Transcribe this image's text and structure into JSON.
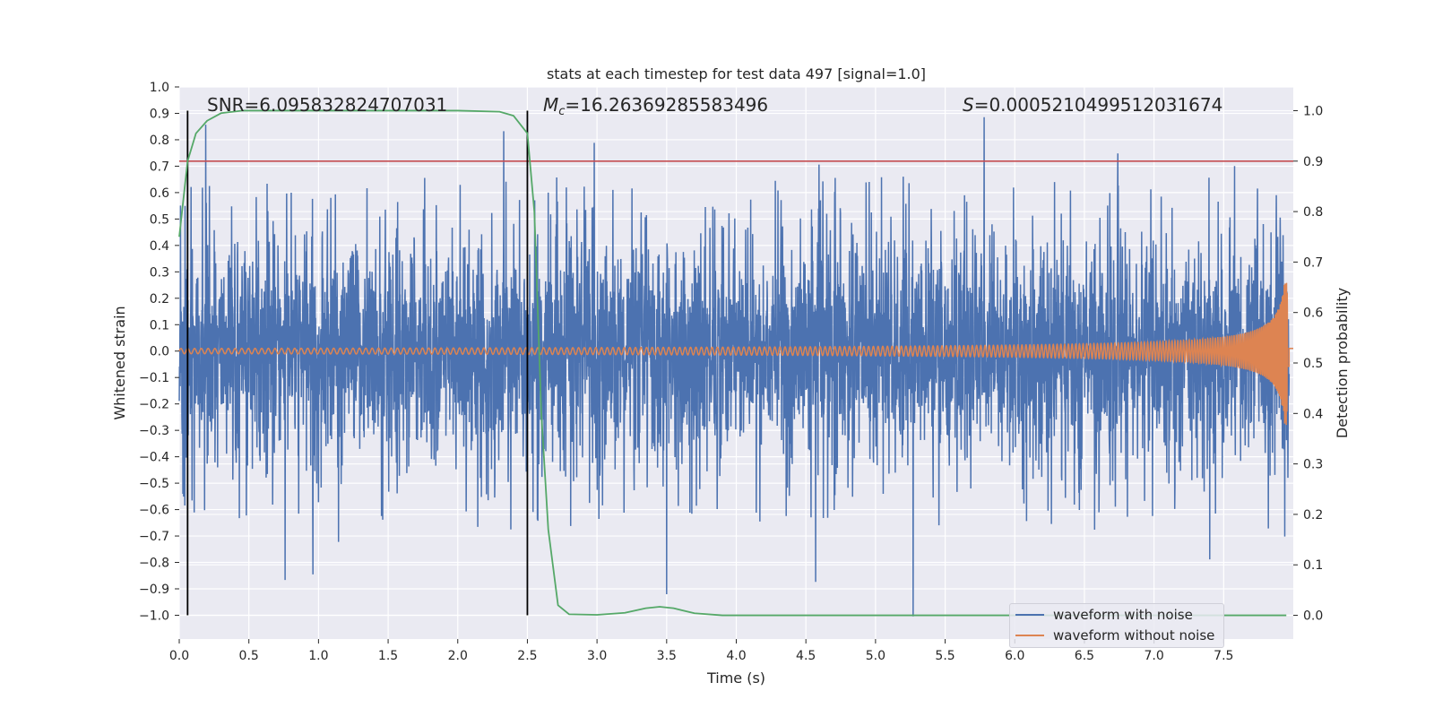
{
  "chart_data": {
    "type": "line",
    "title": "stats at each timestep for test data 497 [signal=1.0]",
    "xlabel": "Time (s)",
    "ylabel": "Whitened strain",
    "y2label": "Detection probability",
    "xlim": [
      0.0,
      8.0
    ],
    "ylim": [
      -1.09,
      1.0
    ],
    "y2lim": [
      -0.047,
      1.047
    ],
    "xticks": [
      "0.0",
      "0.5",
      "1.0",
      "1.5",
      "2.0",
      "2.5",
      "3.0",
      "3.5",
      "4.0",
      "4.5",
      "5.0",
      "5.5",
      "6.0",
      "6.5",
      "7.0",
      "7.5"
    ],
    "yticks": [
      "1.0",
      "0.9",
      "0.8",
      "0.7",
      "0.6",
      "0.5",
      "0.4",
      "0.3",
      "0.2",
      "0.1",
      "0.0",
      "−0.1",
      "−0.2",
      "−0.3",
      "−0.4",
      "−0.5",
      "−0.6",
      "−0.7",
      "−0.8",
      "−0.9",
      "−1.0"
    ],
    "y2ticks": [
      "1.0",
      "0.9",
      "0.8",
      "0.7",
      "0.6",
      "0.5",
      "0.4",
      "0.3",
      "0.2",
      "0.1",
      "0.0"
    ],
    "grid": true,
    "background": "#EAEAF2",
    "annotations": {
      "snr": "SNR=6.095832824707031",
      "mc_symbol": "M",
      "mc_sub": "c",
      "mc_value": "=16.26369285583496",
      "s_symbol": "S",
      "s_value": "=0.0005210499512031674"
    },
    "vlines_x": [
      0.06,
      2.5
    ],
    "threshold_y2": 0.9,
    "noise_envelope": {
      "core_amplitude": 0.33,
      "notable_peaks": [
        {
          "x": 0.19,
          "y": 0.85
        },
        {
          "x": 2.33,
          "y": 0.84
        },
        {
          "x": 2.98,
          "y": 0.79
        },
        {
          "x": 5.27,
          "y": 0.73
        },
        {
          "x": 5.78,
          "y": 0.9
        },
        {
          "x": 6.74,
          "y": 0.76
        },
        {
          "x": 0.76,
          "y": -0.86
        },
        {
          "x": 0.96,
          "y": -0.85
        },
        {
          "x": 3.5,
          "y": -0.93
        },
        {
          "x": 4.57,
          "y": -0.88
        },
        {
          "x": 5.27,
          "y": -1.0
        },
        {
          "x": 7.4,
          "y": -0.81
        }
      ]
    },
    "probability_curve": [
      [
        0.0,
        0.75
      ],
      [
        0.06,
        0.9
      ],
      [
        0.12,
        0.955
      ],
      [
        0.2,
        0.98
      ],
      [
        0.3,
        0.995
      ],
      [
        0.45,
        1.0
      ],
      [
        2.0,
        1.0
      ],
      [
        2.3,
        0.998
      ],
      [
        2.4,
        0.99
      ],
      [
        2.5,
        0.955
      ],
      [
        2.55,
        0.8
      ],
      [
        2.6,
        0.4
      ],
      [
        2.65,
        0.17
      ],
      [
        2.72,
        0.02
      ],
      [
        2.8,
        0.002
      ],
      [
        3.0,
        0.001
      ],
      [
        3.2,
        0.005
      ],
      [
        3.35,
        0.014
      ],
      [
        3.45,
        0.017
      ],
      [
        3.55,
        0.014
      ],
      [
        3.7,
        0.004
      ],
      [
        3.9,
        0.0
      ],
      [
        7.95,
        0.0
      ]
    ],
    "chirp": {
      "t_end": 7.97,
      "amp_start": 0.01,
      "amp_end": 0.28
    },
    "series": [
      {
        "name": "waveform with noise",
        "color": "#4C72B0"
      },
      {
        "name": "waveform without noise",
        "color": "#DD8452"
      }
    ],
    "colors": {
      "probability": "#55A868",
      "threshold": "#C44E52",
      "vline": "#000000"
    },
    "legend_position": "lower right"
  }
}
